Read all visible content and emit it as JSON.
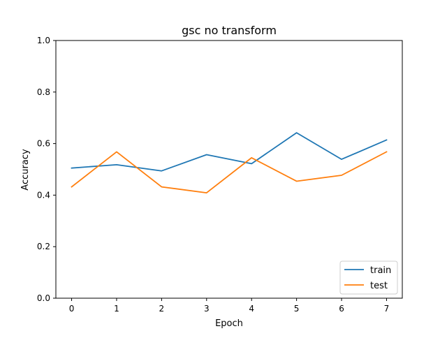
{
  "chart_data": {
    "type": "line",
    "title": "gsc no transform",
    "xlabel": "Epoch",
    "ylabel": "Accuracy",
    "x": [
      0,
      1,
      2,
      3,
      4,
      5,
      6,
      7
    ],
    "xlim": [
      -0.35,
      7.35
    ],
    "ylim": [
      0.0,
      1.0
    ],
    "xticks": [
      "0",
      "1",
      "2",
      "3",
      "4",
      "5",
      "6",
      "7"
    ],
    "yticks": [
      "0.0",
      "0.2",
      "0.4",
      "0.6",
      "0.8",
      "1.0"
    ],
    "grid": false,
    "legend_position": "bottom-right",
    "series": [
      {
        "name": "train",
        "color": "#1f77b4",
        "values": [
          0.505,
          0.518,
          0.494,
          0.557,
          0.522,
          0.642,
          0.539,
          0.614
        ]
      },
      {
        "name": "test",
        "color": "#ff7f0e",
        "values": [
          0.432,
          0.568,
          0.432,
          0.409,
          0.545,
          0.454,
          0.477,
          0.568
        ]
      }
    ]
  }
}
